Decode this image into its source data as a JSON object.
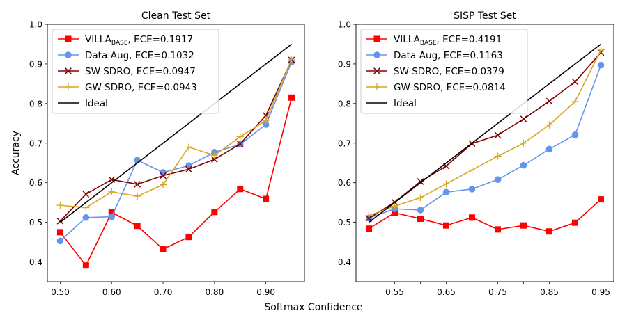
{
  "figure": {
    "ylabel": "Accuracy",
    "xlabel": "Softmax Confidence"
  },
  "chart_data": [
    {
      "type": "line",
      "title": "Clean Test Set",
      "xlim": [
        0.475,
        0.975
      ],
      "ylim": [
        0.35,
        1.0
      ],
      "xticks": [
        0.5,
        0.6,
        0.7,
        0.8,
        0.9
      ],
      "xtick_labels": [
        "0.50",
        "0.60",
        "0.70",
        "0.80",
        "0.90"
      ],
      "yticks": [
        0.4,
        0.5,
        0.6,
        0.7,
        0.8,
        0.9,
        1.0
      ],
      "ytick_labels": [
        "0.4",
        "0.5",
        "0.6",
        "0.7",
        "0.8",
        "0.9",
        "1.0"
      ],
      "grid": false,
      "legend_position": "top-left",
      "x": [
        0.5,
        0.55,
        0.6,
        0.65,
        0.7,
        0.75,
        0.8,
        0.85,
        0.9,
        0.95
      ],
      "series": [
        {
          "name": "VILLA",
          "name_sub": "BASE",
          "name_suffix": ", ECE=0.1917",
          "color": "#ff0000",
          "marker": "square",
          "values": [
            0.475,
            0.391,
            0.525,
            0.491,
            0.432,
            0.463,
            0.526,
            0.584,
            0.559,
            0.815
          ]
        },
        {
          "name": "Data-Aug, ECE=0.1032",
          "color": "#6495ed",
          "marker": "circle",
          "values": [
            0.453,
            0.512,
            0.514,
            0.657,
            0.626,
            0.643,
            0.677,
            0.697,
            0.747,
            0.905
          ]
        },
        {
          "name": "SW-SDRO, ECE=0.0947",
          "color": "#800000",
          "marker": "x",
          "values": [
            0.503,
            0.571,
            0.608,
            0.596,
            0.618,
            0.634,
            0.659,
            0.698,
            0.77,
            0.91
          ]
        },
        {
          "name": "GW-SDRO, ECE=0.0943",
          "color": "#daa520",
          "marker": "plus",
          "values": [
            0.543,
            0.537,
            0.577,
            0.566,
            0.595,
            0.69,
            0.669,
            0.716,
            0.757,
            0.912
          ]
        },
        {
          "name": "Ideal",
          "color": "#000000",
          "marker": "none",
          "x": [
            0.5,
            0.95
          ],
          "values": [
            0.5,
            0.95
          ]
        }
      ]
    },
    {
      "type": "line",
      "title": "SISP Test Set",
      "xlim": [
        0.475,
        0.975
      ],
      "ylim": [
        0.35,
        1.0
      ],
      "xticks": [
        0.55,
        0.65,
        0.75,
        0.85,
        0.95
      ],
      "xtick_labels": [
        "0.55",
        "0.65",
        "0.75",
        "0.85",
        "0.95"
      ],
      "minor_xticks": [
        0.5,
        0.6,
        0.7,
        0.8,
        0.9
      ],
      "yticks": [
        0.4,
        0.5,
        0.6,
        0.7,
        0.8,
        0.9,
        1.0
      ],
      "ytick_labels": [
        "0.4",
        "0.5",
        "0.6",
        "0.7",
        "0.8",
        "0.9",
        "1.0"
      ],
      "grid": false,
      "legend_position": "top-left",
      "x": [
        0.5,
        0.55,
        0.6,
        0.65,
        0.7,
        0.75,
        0.8,
        0.85,
        0.9,
        0.95
      ],
      "series": [
        {
          "name": "VILLA",
          "name_sub": "BASE",
          "name_suffix": ", ECE=0.4191",
          "color": "#ff0000",
          "marker": "square",
          "values": [
            0.484,
            0.524,
            0.509,
            0.492,
            0.512,
            0.482,
            0.492,
            0.477,
            0.499,
            0.558
          ]
        },
        {
          "name": "Data-Aug, ECE=0.1163",
          "color": "#6495ed",
          "marker": "circle",
          "values": [
            0.511,
            0.534,
            0.531,
            0.576,
            0.584,
            0.608,
            0.644,
            0.685,
            0.721,
            0.897
          ]
        },
        {
          "name": "SW-SDRO, ECE=0.0379",
          "color": "#800000",
          "marker": "x",
          "values": [
            0.51,
            0.551,
            0.603,
            0.642,
            0.699,
            0.72,
            0.761,
            0.806,
            0.855,
            0.929
          ]
        },
        {
          "name": "GW-SDRO, ECE=0.0814",
          "color": "#daa520",
          "marker": "plus",
          "values": [
            0.517,
            0.541,
            0.562,
            0.597,
            0.632,
            0.667,
            0.7,
            0.746,
            0.805,
            0.935
          ]
        },
        {
          "name": "Ideal",
          "color": "#000000",
          "marker": "none",
          "x": [
            0.5,
            0.95
          ],
          "values": [
            0.5,
            0.95
          ]
        }
      ]
    }
  ]
}
